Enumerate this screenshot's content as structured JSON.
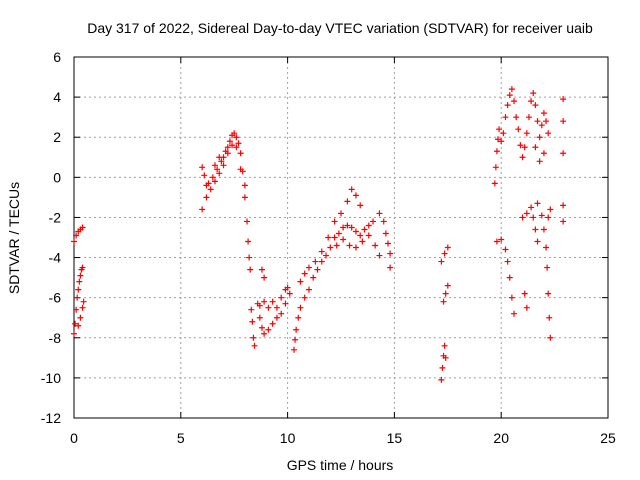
{
  "chart_data": {
    "type": "scatter",
    "title": "Day 317 of 2022, Sidereal Day-to-day VTEC variation (SDTVAR) for receiver uaib",
    "xlabel": "GPS time / hours",
    "ylabel": "SDTVAR / TECUs",
    "xlim": [
      0,
      25
    ],
    "ylim": [
      -12,
      6
    ],
    "xticks": [
      0,
      5,
      10,
      15,
      20,
      25
    ],
    "yticks": [
      -12,
      -10,
      -8,
      -6,
      -4,
      -2,
      0,
      2,
      4,
      6
    ],
    "xtick_labels": [
      "0",
      "5",
      "10",
      "15",
      "20",
      "25"
    ],
    "ytick_labels": [
      "-12",
      "-10",
      "-8",
      "-6",
      "-4",
      "-2",
      "0",
      "2",
      "4",
      "6"
    ],
    "grid": true,
    "marker": "+",
    "color": "#ff0000",
    "segments": [
      {
        "name": "arc-a",
        "points": [
          [
            0.0,
            -3.2
          ],
          [
            0.1,
            -2.9
          ],
          [
            0.2,
            -2.7
          ],
          [
            0.3,
            -2.6
          ],
          [
            0.4,
            -2.5
          ]
        ]
      },
      {
        "name": "arc-b",
        "points": [
          [
            0.0,
            -7.8
          ],
          [
            0.05,
            -7.3
          ],
          [
            0.1,
            -6.6
          ],
          [
            0.15,
            -6.0
          ],
          [
            0.2,
            -5.6
          ],
          [
            0.25,
            -5.2
          ],
          [
            0.3,
            -4.9
          ],
          [
            0.35,
            -4.6
          ],
          [
            0.4,
            -4.5
          ],
          [
            0.2,
            -7.4
          ],
          [
            0.3,
            -7.0
          ],
          [
            0.4,
            -6.5
          ],
          [
            0.45,
            -6.2
          ]
        ]
      },
      {
        "name": "arc-c",
        "points": [
          [
            6.0,
            0.5
          ],
          [
            6.1,
            0.1
          ],
          [
            6.2,
            -0.4
          ],
          [
            6.3,
            -0.3
          ],
          [
            6.5,
            0.0
          ],
          [
            6.7,
            0.4
          ],
          [
            6.9,
            0.8
          ],
          [
            7.1,
            1.3
          ],
          [
            7.3,
            1.8
          ],
          [
            7.4,
            2.1
          ],
          [
            7.5,
            2.2
          ],
          [
            7.6,
            2.0
          ],
          [
            7.7,
            1.7
          ],
          [
            7.8,
            1.2
          ],
          [
            7.9,
            0.3
          ],
          [
            8.0,
            -1.0
          ],
          [
            8.1,
            -2.2
          ],
          [
            8.15,
            -3.2
          ],
          [
            8.2,
            -4.0
          ],
          [
            8.25,
            -4.6
          ],
          [
            6.0,
            -1.6
          ],
          [
            6.2,
            -1.0
          ],
          [
            6.4,
            -0.6
          ],
          [
            6.6,
            -0.2
          ],
          [
            6.8,
            0.2
          ],
          [
            7.0,
            0.6
          ],
          [
            7.2,
            1.2
          ],
          [
            7.4,
            1.6
          ],
          [
            7.6,
            1.5
          ],
          [
            7.8,
            0.4
          ],
          [
            8.0,
            -0.4
          ],
          [
            7.0,
            1.0
          ],
          [
            7.2,
            1.5
          ],
          [
            6.6,
            0.6
          ],
          [
            6.8,
            1.0
          ]
        ]
      },
      {
        "name": "arc-d",
        "points": [
          [
            8.3,
            -6.6
          ],
          [
            8.35,
            -7.2
          ],
          [
            8.4,
            -8.0
          ],
          [
            8.45,
            -8.4
          ]
        ]
      },
      {
        "name": "arc-e",
        "points": [
          [
            8.8,
            -4.6
          ],
          [
            8.9,
            -5.0
          ],
          [
            8.6,
            -6.3
          ],
          [
            8.7,
            -7.0
          ],
          [
            8.8,
            -7.5
          ],
          [
            8.9,
            -7.8
          ],
          [
            9.1,
            -7.6
          ],
          [
            9.3,
            -7.3
          ],
          [
            9.5,
            -7.0
          ],
          [
            9.7,
            -6.8
          ],
          [
            9.9,
            -6.3
          ],
          [
            10.0,
            -5.5
          ],
          [
            10.1,
            -5.8
          ],
          [
            8.7,
            -6.4
          ],
          [
            8.9,
            -6.2
          ],
          [
            9.1,
            -6.5
          ],
          [
            9.3,
            -6.2
          ],
          [
            9.5,
            -6.5
          ],
          [
            9.7,
            -6.0
          ],
          [
            9.9,
            -5.6
          ]
        ]
      },
      {
        "name": "arc-f",
        "points": [
          [
            10.3,
            -8.6
          ],
          [
            10.35,
            -8.1
          ],
          [
            10.4,
            -7.6
          ],
          [
            10.5,
            -7.0
          ],
          [
            10.6,
            -6.5
          ],
          [
            10.8,
            -6.0
          ],
          [
            11.0,
            -5.6
          ],
          [
            11.2,
            -5.0
          ],
          [
            11.4,
            -4.6
          ],
          [
            11.6,
            -4.2
          ],
          [
            11.8,
            -3.9
          ],
          [
            12.0,
            -3.5
          ],
          [
            12.2,
            -3.0
          ],
          [
            12.4,
            -2.8
          ],
          [
            12.6,
            -2.5
          ],
          [
            12.8,
            -2.4
          ],
          [
            13.0,
            -2.5
          ],
          [
            13.2,
            -2.7
          ],
          [
            13.4,
            -2.9
          ],
          [
            13.6,
            -2.6
          ],
          [
            13.8,
            -2.4
          ],
          [
            14.0,
            -2.2
          ],
          [
            10.6,
            -5.2
          ],
          [
            10.8,
            -4.8
          ],
          [
            11.0,
            -4.5
          ],
          [
            11.3,
            -4.2
          ],
          [
            11.6,
            -3.7
          ],
          [
            11.9,
            -3.0
          ],
          [
            12.2,
            -2.2
          ],
          [
            12.5,
            -1.8
          ],
          [
            12.8,
            -1.2
          ],
          [
            13.0,
            -0.6
          ],
          [
            13.2,
            -0.9
          ],
          [
            13.4,
            -1.4
          ],
          [
            12.3,
            -3.4
          ],
          [
            12.6,
            -3.1
          ],
          [
            12.9,
            -3.4
          ],
          [
            13.2,
            -3.5
          ],
          [
            13.5,
            -3.2
          ],
          [
            13.8,
            -2.9
          ],
          [
            14.1,
            -3.4
          ],
          [
            14.3,
            -3.9
          ],
          [
            14.3,
            -1.8
          ],
          [
            14.5,
            -2.2
          ],
          [
            14.6,
            -2.8
          ],
          [
            14.7,
            -3.3
          ],
          [
            14.8,
            -3.8
          ],
          [
            14.8,
            -4.5
          ]
        ]
      },
      {
        "name": "arc-g",
        "points": [
          [
            17.2,
            -10.1
          ],
          [
            17.25,
            -9.5
          ],
          [
            17.3,
            -8.9
          ],
          [
            17.35,
            -8.4
          ],
          [
            17.4,
            -9.0
          ],
          [
            17.3,
            -6.2
          ],
          [
            17.4,
            -5.8
          ],
          [
            17.5,
            -5.4
          ],
          [
            17.2,
            -4.2
          ],
          [
            17.35,
            -3.8
          ],
          [
            17.5,
            -3.5
          ]
        ]
      },
      {
        "name": "arc-h",
        "points": [
          [
            19.7,
            -0.3
          ],
          [
            19.75,
            0.5
          ],
          [
            19.8,
            1.3
          ],
          [
            19.85,
            1.9
          ],
          [
            19.9,
            2.4
          ],
          [
            20.0,
            1.8
          ],
          [
            20.1,
            2.2
          ],
          [
            20.2,
            3.0
          ],
          [
            20.3,
            3.6
          ],
          [
            20.4,
            4.1
          ],
          [
            20.5,
            4.4
          ],
          [
            20.6,
            3.8
          ],
          [
            20.7,
            3.0
          ],
          [
            20.8,
            2.4
          ],
          [
            20.9,
            1.6
          ],
          [
            21.0,
            1.0
          ],
          [
            21.1,
            1.5
          ],
          [
            21.2,
            2.2
          ],
          [
            21.3,
            3.0
          ],
          [
            21.4,
            3.8
          ],
          [
            21.5,
            4.2
          ],
          [
            21.6,
            3.6
          ],
          [
            21.7,
            2.8
          ],
          [
            21.8,
            2.0
          ],
          [
            21.9,
            2.6
          ],
          [
            22.0,
            3.2
          ],
          [
            22.1,
            2.8
          ],
          [
            22.2,
            2.2
          ],
          [
            21.6,
            1.5
          ],
          [
            21.8,
            0.8
          ],
          [
            22.0,
            1.2
          ],
          [
            21.7,
            -1.3
          ],
          [
            21.9,
            -1.9
          ],
          [
            22.0,
            -2.6
          ],
          [
            22.1,
            -3.5
          ],
          [
            22.15,
            -4.5
          ],
          [
            22.2,
            -5.8
          ],
          [
            22.25,
            -7.0
          ],
          [
            22.3,
            -8.0
          ],
          [
            19.8,
            -3.2
          ],
          [
            20.0,
            -3.1
          ],
          [
            20.2,
            -3.6
          ],
          [
            20.3,
            -4.2
          ],
          [
            20.4,
            -5.0
          ],
          [
            20.5,
            -6.0
          ],
          [
            20.6,
            -6.8
          ],
          [
            21.0,
            -2.0
          ],
          [
            21.2,
            -1.8
          ],
          [
            21.4,
            -1.5
          ],
          [
            21.5,
            -2.0
          ],
          [
            21.6,
            -2.6
          ],
          [
            21.7,
            -3.2
          ],
          [
            21.1,
            -5.8
          ],
          [
            21.2,
            -6.5
          ],
          [
            22.3,
            -1.6
          ],
          [
            22.2,
            -2.0
          ],
          [
            22.9,
            3.9
          ],
          [
            22.9,
            2.8
          ],
          [
            22.9,
            -1.4
          ],
          [
            22.9,
            -2.2
          ],
          [
            22.9,
            1.2
          ]
        ]
      }
    ]
  }
}
